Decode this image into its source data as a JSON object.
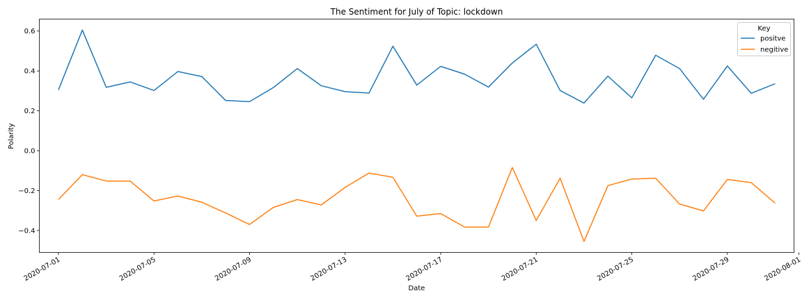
{
  "chart_data": {
    "type": "line",
    "title": "The Sentiment for July of Topic: lockdown",
    "xlabel": "Date",
    "ylabel": "Polarity",
    "x": [
      "2020-07-01",
      "2020-07-02",
      "2020-07-03",
      "2020-07-04",
      "2020-07-05",
      "2020-07-06",
      "2020-07-07",
      "2020-07-08",
      "2020-07-09",
      "2020-07-10",
      "2020-07-11",
      "2020-07-12",
      "2020-07-13",
      "2020-07-14",
      "2020-07-15",
      "2020-07-16",
      "2020-07-17",
      "2020-07-18",
      "2020-07-19",
      "2020-07-20",
      "2020-07-21",
      "2020-07-22",
      "2020-07-23",
      "2020-07-24",
      "2020-07-25",
      "2020-07-26",
      "2020-07-27",
      "2020-07-28",
      "2020-07-29",
      "2020-07-30",
      "2020-07-31"
    ],
    "xlim": [
      "2020-06-30",
      "2020-08-01"
    ],
    "x_ticks": [
      "2020-07-01",
      "2020-07-05",
      "2020-07-09",
      "2020-07-13",
      "2020-07-17",
      "2020-07-21",
      "2020-07-25",
      "2020-07-29",
      "2020-08-01"
    ],
    "ylim": [
      -0.51,
      0.66
    ],
    "y_ticks": [
      -0.4,
      -0.2,
      0.0,
      0.2,
      0.4,
      0.6
    ],
    "y_tick_labels": [
      "−0.4",
      "−0.2",
      "0.0",
      "0.2",
      "0.4",
      "0.6"
    ],
    "grid": false,
    "legend": {
      "title": "Key",
      "placement": "top-right"
    },
    "series": [
      {
        "name": "positve",
        "color": "#1f77b4",
        "values": [
          0.305,
          0.605,
          0.318,
          0.345,
          0.302,
          0.397,
          0.372,
          0.252,
          0.246,
          0.317,
          0.412,
          0.326,
          0.296,
          0.289,
          0.524,
          0.329,
          0.423,
          0.384,
          0.319,
          0.44,
          0.534,
          0.302,
          0.239,
          0.374,
          0.265,
          0.479,
          0.412,
          0.258,
          0.425,
          0.288,
          0.336
        ]
      },
      {
        "name": "negitive",
        "color": "#ff7f0e",
        "values": [
          -0.245,
          -0.12,
          -0.152,
          -0.152,
          -0.252,
          -0.227,
          -0.258,
          -0.312,
          -0.37,
          -0.284,
          -0.245,
          -0.272,
          -0.184,
          -0.112,
          -0.133,
          -0.328,
          -0.315,
          -0.383,
          -0.383,
          -0.084,
          -0.35,
          -0.138,
          -0.455,
          -0.175,
          -0.142,
          -0.138,
          -0.267,
          -0.302,
          -0.144,
          -0.16,
          -0.263
        ]
      }
    ]
  }
}
